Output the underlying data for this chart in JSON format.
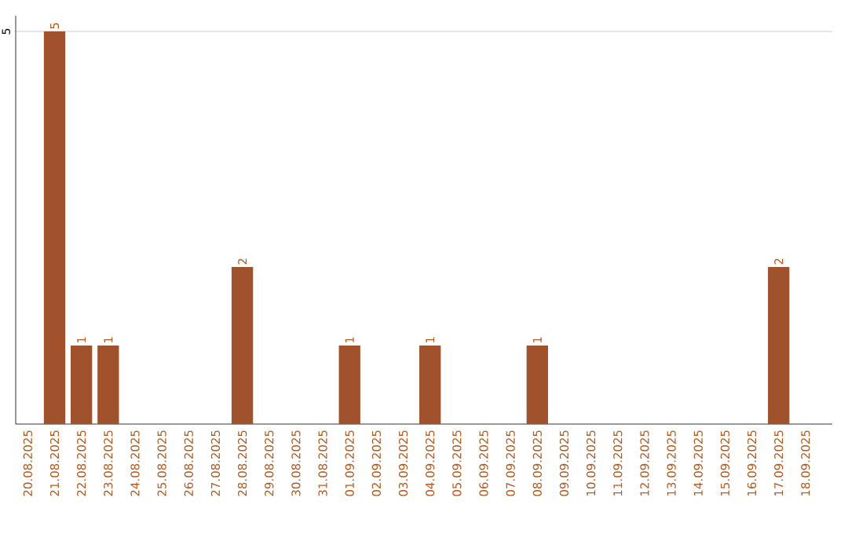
{
  "chart_data": {
    "type": "bar",
    "categories": [
      "20.08.2025",
      "21.08.2025",
      "22.08.2025",
      "23.08.2025",
      "24.08.2025",
      "25.08.2025",
      "26.08.2025",
      "27.08.2025",
      "28.08.2025",
      "29.08.2025",
      "30.08.2025",
      "31.08.2025",
      "01.09.2025",
      "02.09.2025",
      "03.09.2025",
      "04.09.2025",
      "05.09.2025",
      "06.09.2025",
      "07.09.2025",
      "08.09.2025",
      "09.09.2025",
      "10.09.2025",
      "11.09.2025",
      "12.09.2025",
      "13.09.2025",
      "14.09.2025",
      "15.09.2025",
      "16.09.2025",
      "17.09.2025",
      "18.09.2025"
    ],
    "values": [
      0,
      5,
      1,
      1,
      0,
      0,
      0,
      0,
      2,
      0,
      0,
      0,
      1,
      0,
      0,
      1,
      0,
      0,
      0,
      1,
      0,
      0,
      0,
      0,
      0,
      0,
      0,
      0,
      2,
      0
    ],
    "value_labels": [
      null,
      "5",
      "1",
      "1",
      null,
      null,
      null,
      null,
      "2",
      null,
      null,
      null,
      "1",
      null,
      null,
      "1",
      null,
      null,
      null,
      "1",
      null,
      null,
      null,
      null,
      null,
      null,
      null,
      null,
      "2",
      null
    ],
    "color": "#a0522d",
    "ylim": [
      0,
      5.2
    ],
    "yticks": [
      5
    ],
    "grid": "y"
  }
}
